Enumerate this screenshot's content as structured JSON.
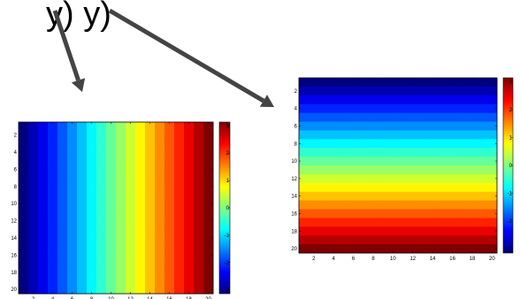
{
  "slide": {
    "heading_fragment": "y) y)"
  },
  "chart_data": [
    {
      "type": "heatmap",
      "title": "",
      "xlabel": "",
      "ylabel": "",
      "colormap": "jet",
      "rows": 20,
      "cols": 20,
      "gradient_direction": "horizontal",
      "value_range": [
        -3.14159,
        3.14159
      ],
      "column_values": [
        -3.14159,
        -2.81089,
        -2.4802,
        -2.1495,
        -1.81881,
        -1.48811,
        -1.15742,
        -0.82673,
        -0.49603,
        -0.16534,
        0.16534,
        0.49603,
        0.82673,
        1.15742,
        1.48811,
        1.81881,
        2.1495,
        2.4802,
        2.81089,
        3.14159
      ],
      "xticks": [
        2,
        4,
        6,
        8,
        10,
        12,
        14,
        16,
        18,
        20
      ],
      "yticks": [
        2,
        4,
        6,
        8,
        10,
        12,
        14,
        16,
        18,
        20
      ],
      "colorbar_ticks": [
        3,
        2,
        1,
        0,
        -1,
        -2,
        -3
      ]
    },
    {
      "type": "heatmap",
      "title": "",
      "xlabel": "",
      "ylabel": "",
      "colormap": "jet",
      "rows": 20,
      "cols": 20,
      "gradient_direction": "vertical",
      "value_range": [
        -3.14159,
        3.14159
      ],
      "row_values": [
        -3.14159,
        -2.81089,
        -2.4802,
        -2.1495,
        -1.81881,
        -1.48811,
        -1.15742,
        -0.82673,
        -0.49603,
        -0.16534,
        0.16534,
        0.49603,
        0.82673,
        1.15742,
        1.48811,
        1.81881,
        2.1495,
        2.4802,
        2.81089,
        3.14159
      ],
      "xticks": [
        2,
        4,
        6,
        8,
        10,
        12,
        14,
        16,
        18,
        20
      ],
      "yticks": [
        2,
        4,
        6,
        8,
        10,
        12,
        14,
        16,
        18,
        20
      ],
      "colorbar_ticks": [
        3,
        2,
        1,
        0,
        -1,
        -2,
        -3
      ]
    }
  ],
  "arrows": [
    {
      "name": "arrow-to-left-heatmap",
      "color": "#444444"
    },
    {
      "name": "arrow-to-right-heatmap",
      "color": "#444444"
    }
  ]
}
